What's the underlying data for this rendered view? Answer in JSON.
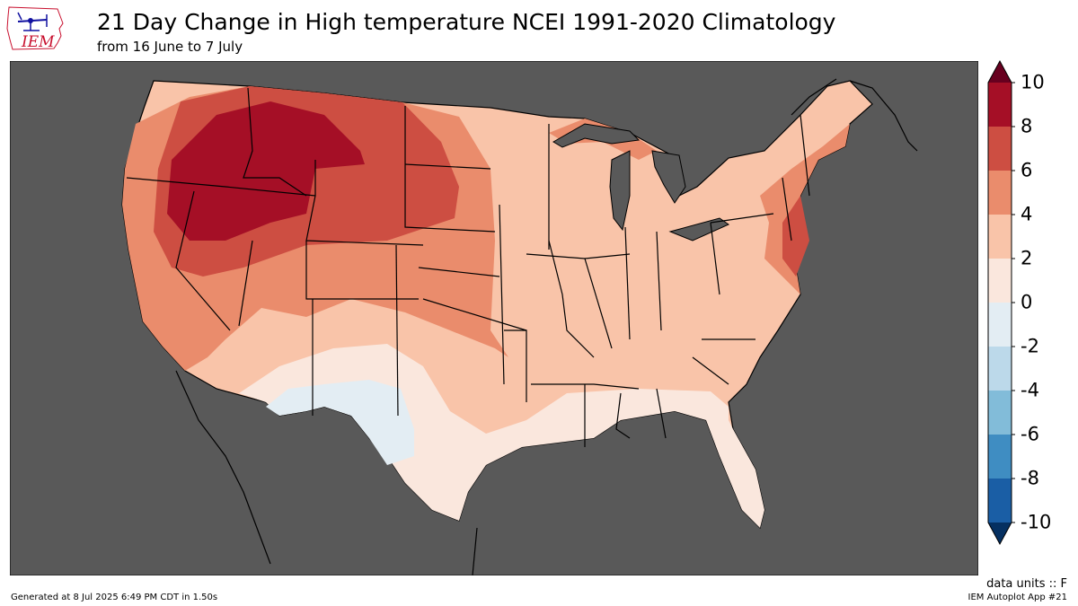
{
  "logo": {
    "text": "IEM"
  },
  "title": "21 Day Change in High temperature NCEI 1991-2020 Climatology",
  "subtitle": "from 16 June to 7 July",
  "colorbar": {
    "ticks": [
      "10",
      "8",
      "6",
      "4",
      "2",
      "0",
      "-2",
      "-4",
      "-6",
      "-8",
      "-10"
    ],
    "colors": [
      "#67001f",
      "#a50f26",
      "#cd4e42",
      "#ea8c6c",
      "#f9c4a9",
      "#fae7dd",
      "#e3edf3",
      "#bcd9ea",
      "#82bcd9",
      "#3f8dc2",
      "#1a5ea5",
      "#053061"
    ],
    "min": -10,
    "max": 10,
    "step": 2
  },
  "footer": {
    "units": "data units :: F",
    "generated": "Generated at 8 Jul 2025 6:49 PM CDT in 1.50s",
    "app": "IEM Autoplot App #21"
  },
  "map": {
    "background_color": "#595959",
    "region": "Contiguous United States",
    "field": "21 day change in average high temperature (F)"
  }
}
